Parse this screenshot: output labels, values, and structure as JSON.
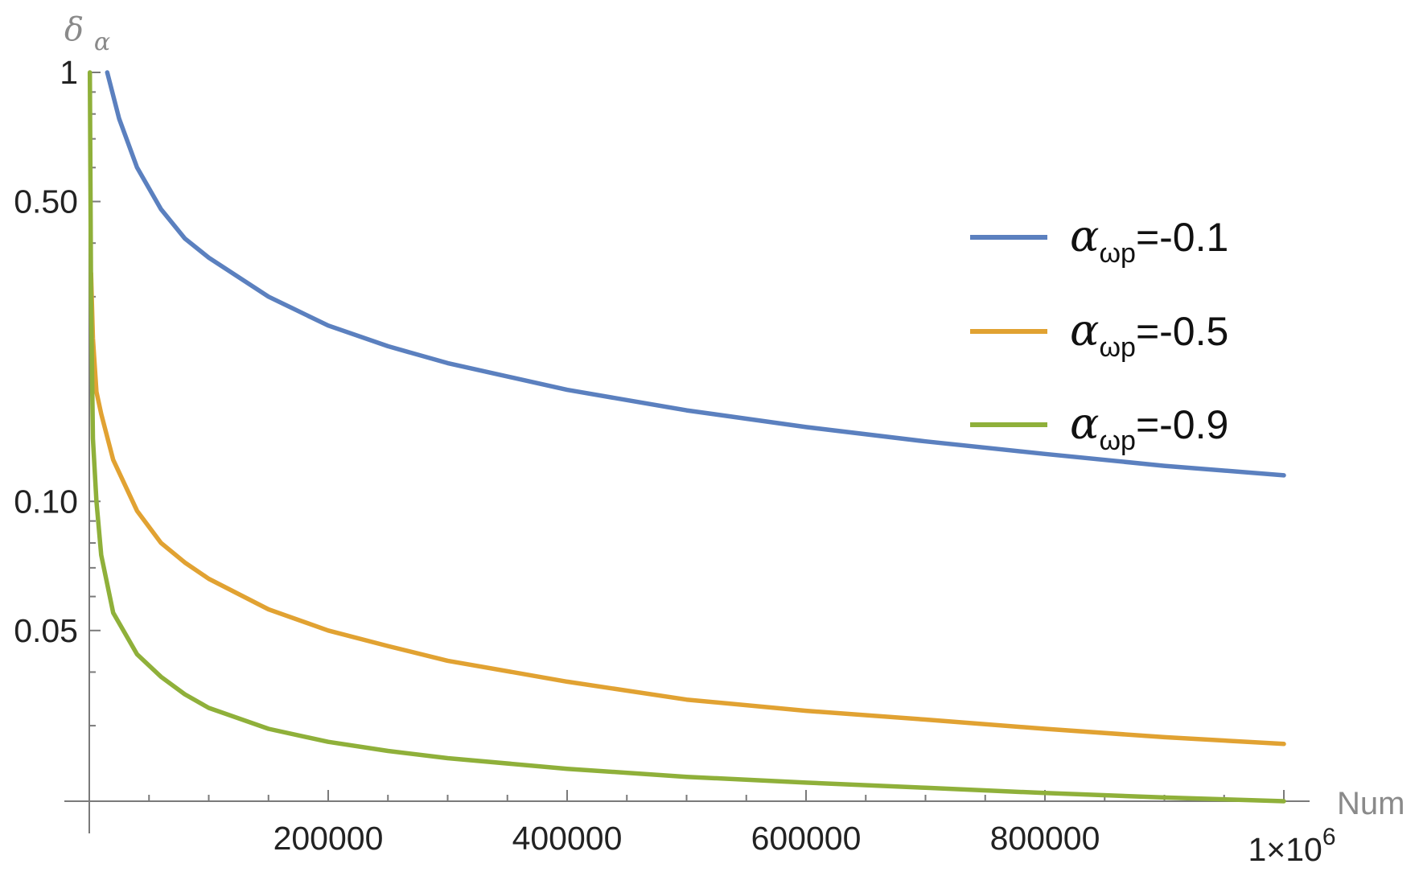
{
  "chart_data": {
    "type": "line",
    "xlabel": "Num",
    "ylabel": "δα",
    "x_scale": "linear",
    "y_scale": "log",
    "xlim": [
      0,
      1000000
    ],
    "ylim": [
      0.02,
      1
    ],
    "grid": false,
    "legend_position": "right",
    "x_ticks": [
      {
        "value": 200000,
        "label": "200000"
      },
      {
        "value": 400000,
        "label": "400000"
      },
      {
        "value": 600000,
        "label": "600000"
      },
      {
        "value": 800000,
        "label": "800000"
      },
      {
        "value": 1000000,
        "label": "1×10^6"
      }
    ],
    "x_tick_label_last": {
      "base": "1×10",
      "exp": "6"
    },
    "y_ticks": [
      {
        "value": 1,
        "label": "1"
      },
      {
        "value": 0.5,
        "label": "0.50"
      },
      {
        "value": 0.1,
        "label": "0.10"
      },
      {
        "value": 0.05,
        "label": "0.05"
      }
    ],
    "series": [
      {
        "name": "α_ωp=-0.1",
        "name_parts": {
          "sym": "α",
          "sub": "ωp",
          "rest": "=-0.1"
        },
        "color": "#5b80bf",
        "x": [
          15000,
          25000,
          40000,
          60000,
          80000,
          100000,
          150000,
          200000,
          250000,
          300000,
          400000,
          500000,
          600000,
          700000,
          800000,
          900000,
          1000000
        ],
        "y": [
          1.0,
          0.78,
          0.6,
          0.48,
          0.41,
          0.37,
          0.3,
          0.257,
          0.23,
          0.21,
          0.182,
          0.163,
          0.149,
          0.138,
          0.129,
          0.121,
          0.115
        ]
      },
      {
        "name": "α_ωp=-0.5",
        "name_parts": {
          "sym": "α",
          "sub": "ωp",
          "rest": "=-0.5"
        },
        "color": "#e1a232",
        "x": [
          1500,
          3000,
          6000,
          10000,
          20000,
          40000,
          60000,
          80000,
          100000,
          150000,
          200000,
          250000,
          300000,
          400000,
          500000,
          600000,
          700000,
          800000,
          900000,
          1000000
        ],
        "y": [
          0.34,
          0.24,
          0.18,
          0.16,
          0.125,
          0.095,
          0.08,
          0.072,
          0.066,
          0.056,
          0.05,
          0.046,
          0.0425,
          0.038,
          0.0345,
          0.0325,
          0.031,
          0.0295,
          0.0282,
          0.0272
        ]
      },
      {
        "name": "α_ωp=-0.9",
        "name_parts": {
          "sym": "α",
          "sub": "ωp",
          "rest": "=-0.9"
        },
        "color": "#8fb03a",
        "x": [
          500,
          1500,
          3000,
          6000,
          10000,
          20000,
          40000,
          60000,
          80000,
          100000,
          150000,
          200000,
          250000,
          300000,
          400000,
          500000,
          600000,
          700000,
          800000,
          900000,
          1000000
        ],
        "y": [
          1.0,
          0.3,
          0.14,
          0.1,
          0.075,
          0.055,
          0.044,
          0.039,
          0.0355,
          0.033,
          0.0295,
          0.0275,
          0.0262,
          0.0252,
          0.0238,
          0.0228,
          0.0221,
          0.0215,
          0.0209,
          0.0204,
          0.02
        ]
      }
    ]
  }
}
